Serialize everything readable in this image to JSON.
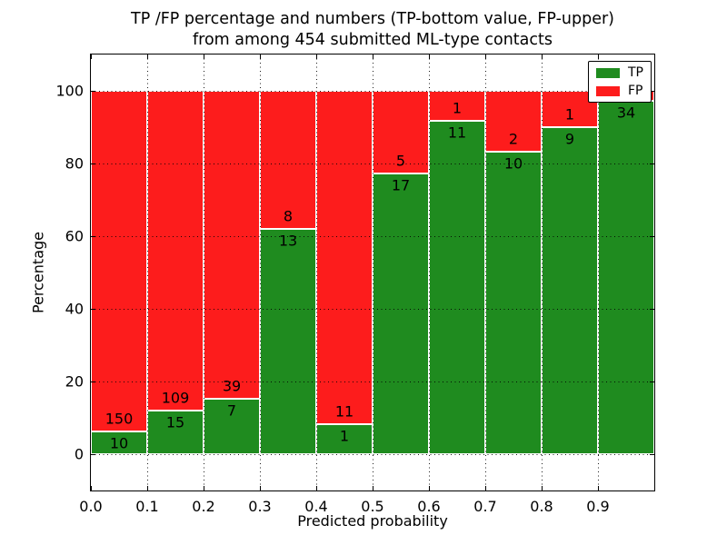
{
  "chart_data": {
    "type": "bar",
    "stacked": true,
    "orientation": "vertical",
    "title_line1": "TP /FP percentage and numbers (TP-bottom value, FP-upper)",
    "title_line2": "from among 454 submitted ML-type contacts",
    "xlabel": "Predicted probability",
    "ylabel": "Percentage",
    "total_contacts": 454,
    "xlim": [
      0.0,
      1.0
    ],
    "ylim": [
      -10,
      110
    ],
    "x_ticks": [
      "0.0",
      "0.1",
      "0.2",
      "0.3",
      "0.4",
      "0.5",
      "0.6",
      "0.7",
      "0.8",
      "0.9"
    ],
    "y_ticks": [
      0,
      20,
      40,
      60,
      80,
      100
    ],
    "grid_style": "dotted",
    "bin_edges": [
      0.0,
      0.1,
      0.2,
      0.3,
      0.4,
      0.5,
      0.6,
      0.7,
      0.8,
      0.9,
      1.0
    ],
    "series": [
      {
        "name": "TP",
        "color": "#1f8b1f",
        "position": "bottom",
        "counts": [
          10,
          15,
          7,
          13,
          1,
          17,
          11,
          10,
          9,
          34
        ]
      },
      {
        "name": "FP",
        "color": "#fd1c1c",
        "position": "top",
        "counts": [
          150,
          109,
          39,
          8,
          11,
          5,
          1,
          2,
          1,
          1
        ]
      }
    ],
    "tp_percent": [
      6.25,
      12.1,
      15.22,
      61.9,
      8.33,
      77.27,
      91.67,
      83.33,
      90.0,
      97.14
    ],
    "legend": {
      "position": "upper right",
      "entries": [
        "TP",
        "FP"
      ]
    }
  },
  "colors": {
    "tp_green": "#1f8b1f",
    "fp_red": "#fd1c1c",
    "background": "#ffffff",
    "text": "#000000",
    "bar_edge": "#ffffff"
  }
}
